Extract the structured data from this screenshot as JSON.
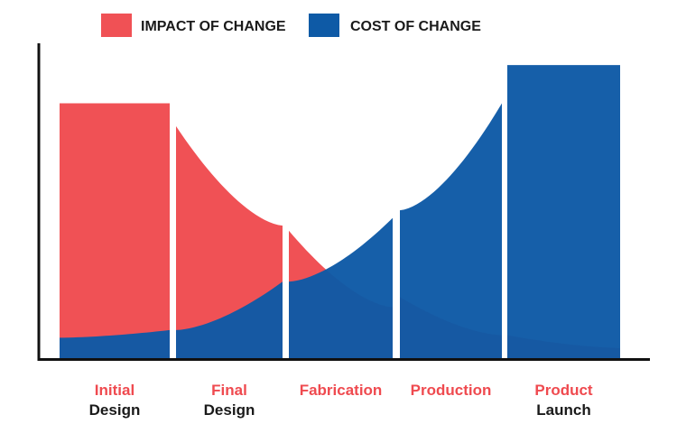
{
  "chart_data": {
    "type": "area",
    "title": "",
    "xlabel": "",
    "ylabel": "",
    "ylim": [
      0,
      100
    ],
    "legend": "top-center",
    "grid": false,
    "categories": [
      {
        "line1": "Initial",
        "line2": "Design"
      },
      {
        "line1": "Final",
        "line2": "Design"
      },
      {
        "line1": "Fabrication",
        "line2": ""
      },
      {
        "line1": "Production",
        "line2": ""
      },
      {
        "line1": "Product",
        "line2": "Launch"
      }
    ],
    "series": [
      {
        "name": "IMPACT OF CHANGE",
        "color": "#f05155",
        "values": [
          [
            100,
            100
          ],
          [
            91,
            52
          ],
          [
            50,
            20
          ],
          [
            24,
            9
          ],
          [
            9,
            4
          ]
        ]
      },
      {
        "name": "COST OF CHANGE",
        "color": "#0e5aa6",
        "values": [
          [
            8,
            11
          ],
          [
            11,
            30
          ],
          [
            30,
            55
          ],
          [
            58,
            100
          ],
          [
            115,
            115
          ]
        ]
      }
    ],
    "category_label_color": "#ef4a4f",
    "category_sub_color": "#1a1a1a"
  }
}
